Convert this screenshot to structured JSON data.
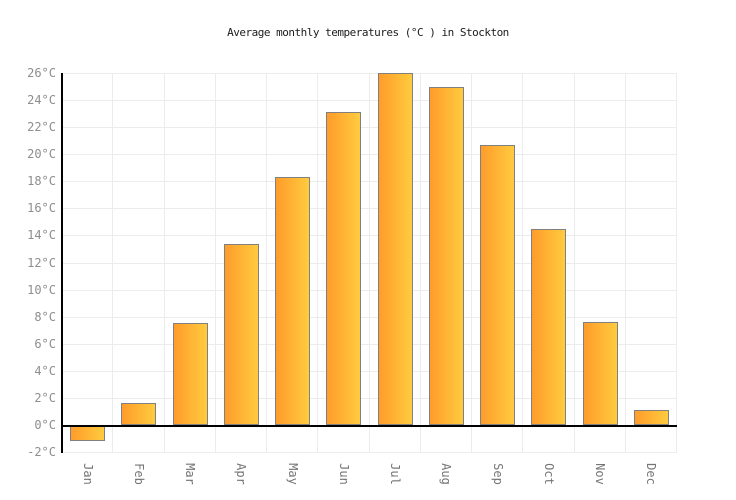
{
  "title": "Average monthly temperatures (°C ) in Stockton",
  "chart_data": {
    "type": "bar",
    "title": "Average monthly temperatures (°C ) in Stockton",
    "categories": [
      "Jan",
      "Feb",
      "Mar",
      "Apr",
      "May",
      "Jun",
      "Jul",
      "Aug",
      "Sep",
      "Oct",
      "Nov",
      "Dec"
    ],
    "values": [
      -1.2,
      1.6,
      7.5,
      13.4,
      18.3,
      23.1,
      26,
      25,
      20.7,
      14.5,
      7.6,
      1.1
    ],
    "unit": "°C",
    "xlabel": "",
    "ylabel": "",
    "ylim": [
      -2,
      26
    ],
    "ytick_step": 2,
    "ytick_labels": [
      "26°C",
      "24°C",
      "22°C",
      "20°C",
      "18°C",
      "16°C",
      "14°C",
      "12°C",
      "10°C",
      "8°C",
      "6°C",
      "4°C",
      "2°C",
      "0°C",
      "-2°C"
    ],
    "grid": true,
    "legend_position": "none",
    "colors": {
      "bar_gradient_left": "#FF9C2B",
      "bar_gradient_right": "#FFCB3E",
      "bar_border": "#808080",
      "gridline": "#ECECEC",
      "axis_line": "#000000",
      "zero_line": "#000000",
      "y_tick_label": "#8E8E8E",
      "x_label": "#757575",
      "title_color": "#1C1C1C",
      "background": "#FFFFFF"
    }
  }
}
